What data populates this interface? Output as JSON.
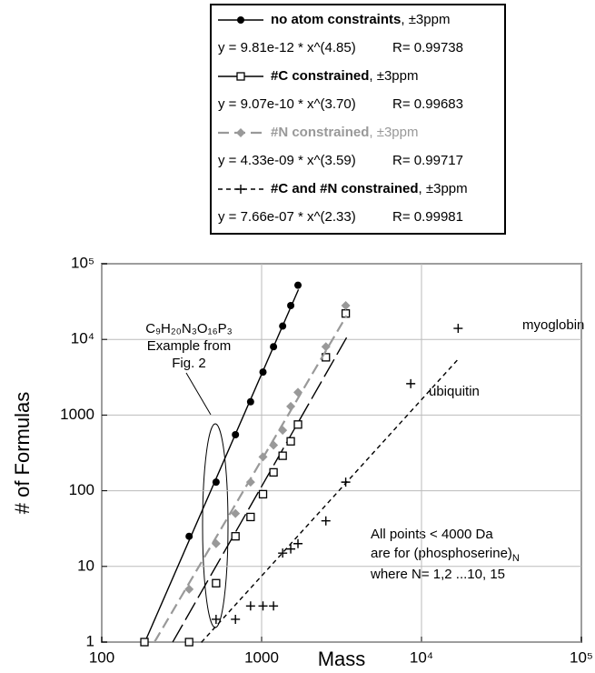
{
  "chart_data": {
    "type": "scatter",
    "x_label": "Mass",
    "y_label": "# of Formulas",
    "log_x": true,
    "log_y": true,
    "grid": true,
    "xlim": [
      100,
      100000
    ],
    "ylim": [
      1,
      100000
    ],
    "xticks": [
      100,
      1000,
      {
        "value": 10000,
        "label": "10⁴"
      },
      {
        "value": 100000,
        "label": "10⁵"
      }
    ],
    "yticks": [
      1,
      10,
      100,
      1000,
      {
        "value": 10000,
        "label": "10⁴"
      },
      {
        "value": 100000,
        "label": "10⁵"
      }
    ],
    "series": [
      {
        "name": "no atom constraints",
        "note": ", ±3ppm",
        "equation": "y = 9.81e-12 * x^(4.85)",
        "r": "R= 0.99738",
        "color": "#000000",
        "marker": "circle",
        "dash": "none",
        "fit": {
          "a": 9.81e-12,
          "b": 4.85,
          "xrange": [
            186,
            1700
          ]
        },
        "x": [
          185,
          352,
          519,
          686,
          853,
          1020,
          1187,
          1354,
          1521,
          1688
        ],
        "values": [
          1,
          25,
          130,
          550,
          1500,
          3700,
          8000,
          15000,
          28000,
          52000
        ]
      },
      {
        "name": "#C constrained",
        "note": ", ±3ppm",
        "equation": "y = 9.07e-10 * x^(3.70)",
        "r": "R= 0.99683",
        "color": "#000000",
        "marker": "square",
        "dash": "22 6",
        "fit": {
          "a": 9.07e-10,
          "b": 3.7,
          "xrange": [
            278,
            3400
          ]
        },
        "x": [
          185,
          352,
          519,
          686,
          853,
          1020,
          1187,
          1354,
          1521,
          1688,
          2523,
          3358
        ],
        "values": [
          1,
          1,
          6,
          25,
          45,
          90,
          175,
          290,
          450,
          750,
          5800,
          22000
        ]
      },
      {
        "name": "#N constrained",
        "note": ", ±3ppm",
        "equation": "y = 4.33e-09 * x^(3.59)",
        "r": "R= 0.99717",
        "color": "#999999",
        "marker": "diamond",
        "dash": "12 6",
        "fit": {
          "a": 4.33e-09,
          "b": 3.59,
          "xrange": [
            214,
            3400
          ]
        },
        "x": [
          352,
          519,
          686,
          853,
          1020,
          1187,
          1354,
          1521,
          1688,
          2523,
          3358
        ],
        "values": [
          5,
          20,
          50,
          130,
          280,
          400,
          630,
          1300,
          2000,
          8000,
          28000
        ]
      },
      {
        "name": "#C and #N constrained",
        "note": ", ±3ppm",
        "equation": "y = 7.66e-07 * x^(2.33)",
        "r": "R= 0.99981",
        "color": "#000000",
        "marker": "plus",
        "dash": "5 4",
        "fit": {
          "a": 7.66e-07,
          "b": 2.33,
          "xrange": [
            420,
            17000
          ]
        },
        "x": [
          519,
          686,
          853,
          1020,
          1187,
          1354,
          1521,
          1688,
          2523,
          3358,
          8565,
          16950
        ],
        "values": [
          2,
          2,
          3,
          3,
          3,
          15,
          17,
          20,
          40,
          130,
          2600,
          14000
        ]
      }
    ],
    "annotations": {
      "example": [
        "C₉H₂₀N₃O₁₆P₃",
        "Example from",
        "Fig. 2"
      ],
      "myoglobin": "myoglobin",
      "ubiquitin": "ubiquitin",
      "note_line1": "All points < 4000 Da",
      "note_line2": "are for (phosphoserine)",
      "note_sub": "N",
      "note_line3": "where N= 1,2 ...10, 15"
    }
  }
}
